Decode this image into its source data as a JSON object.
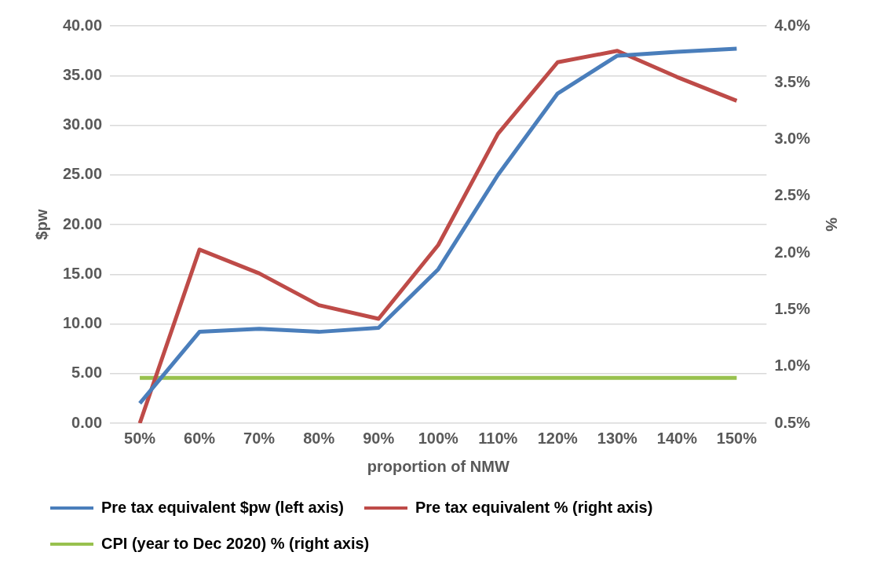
{
  "chart_data": {
    "type": "line",
    "xlabel": "proportion of NMW",
    "ylabel": "$pw",
    "y2label": "%",
    "categories": [
      "50%",
      "60%",
      "70%",
      "80%",
      "90%",
      "100%",
      "110%",
      "120%",
      "130%",
      "140%",
      "150%"
    ],
    "series": [
      {
        "name": "Pre tax equivalent $pw (left axis)",
        "color": "#4a7ebb",
        "values": [
          2.0,
          9.2,
          9.5,
          9.2,
          9.6,
          15.5,
          25.0,
          33.2,
          37.0,
          37.4,
          37.7
        ]
      },
      {
        "name": "Pre tax equivalent % (right axis)",
        "color": "#be4b48",
        "axis": "y2",
        "values": [
          0.5,
          2.03,
          1.82,
          1.54,
          1.42,
          2.07,
          3.05,
          3.68,
          3.78,
          3.55,
          3.34
        ]
      },
      {
        "name": "CPI (year to Dec 2020) % (right axis)",
        "color": "#98c14e",
        "axis": "y2",
        "values": [
          0.9,
          0.9,
          0.9,
          0.9,
          0.9,
          0.9,
          0.9,
          0.9,
          0.9,
          0.9,
          0.9
        ]
      }
    ],
    "ylim": [
      0,
      40
    ],
    "yticks": [
      {
        "value": 0,
        "label": "0.00"
      },
      {
        "value": 5,
        "label": "5.00"
      },
      {
        "value": 10,
        "label": "10.00"
      },
      {
        "value": 15,
        "label": "15.00"
      },
      {
        "value": 20,
        "label": "20.00"
      },
      {
        "value": 25,
        "label": "25.00"
      },
      {
        "value": 30,
        "label": "30.00"
      },
      {
        "value": 35,
        "label": "35.00"
      },
      {
        "value": 40,
        "label": "40.00"
      }
    ],
    "y2lim": [
      0.5,
      4.0
    ],
    "y2ticks": [
      {
        "value": 0.5,
        "label": "0.5%"
      },
      {
        "value": 1.0,
        "label": "1.0%"
      },
      {
        "value": 1.5,
        "label": "1.5%"
      },
      {
        "value": 2.0,
        "label": "2.0%"
      },
      {
        "value": 2.5,
        "label": "2.5%"
      },
      {
        "value": 3.0,
        "label": "3.0%"
      },
      {
        "value": 3.5,
        "label": "3.5%"
      },
      {
        "value": 4.0,
        "label": "4.0%"
      }
    ],
    "grid": "y",
    "legend": "bottom",
    "marker": "none",
    "line_style": "solid"
  }
}
